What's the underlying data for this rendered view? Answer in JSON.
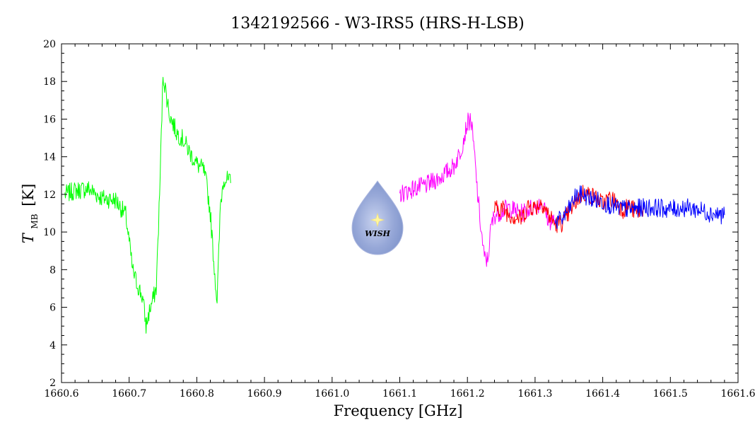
{
  "chart_data": {
    "type": "line",
    "title": "1342192566 - W3-IRS5 (HRS-H-LSB)",
    "xlabel": "Frequency [GHz]",
    "ylabel_main": "T",
    "ylabel_sub": "MB",
    "ylabel_unit": "[K]",
    "xlim": [
      1660.6,
      1661.6
    ],
    "ylim": [
      2,
      20
    ],
    "x_ticks": [
      "1660.6",
      "1660.7",
      "1660.8",
      "1660.9",
      "1661.0",
      "1661.1",
      "1661.2",
      "1661.3",
      "1661.4",
      "1661.5",
      "1661.6"
    ],
    "y_ticks": [
      "2",
      "4",
      "6",
      "8",
      "10",
      "12",
      "14",
      "16",
      "18",
      "20"
    ],
    "grid": false,
    "logo_text": "WISH",
    "series": [
      {
        "color": "#00ff00",
        "x": [
          1660.605,
          1660.62,
          1660.64,
          1660.66,
          1660.68,
          1660.695,
          1660.7,
          1660.705,
          1660.71,
          1660.72,
          1660.725,
          1660.73,
          1660.74,
          1660.745,
          1660.75,
          1660.755,
          1660.76,
          1660.77,
          1660.78,
          1660.79,
          1660.8,
          1660.81,
          1660.815,
          1660.82,
          1660.825,
          1660.83,
          1660.835,
          1660.84,
          1660.85
        ],
        "y": [
          12.0,
          12.2,
          12.3,
          11.8,
          11.7,
          10.9,
          9.5,
          8.0,
          7.4,
          6.5,
          5.0,
          5.8,
          7.0,
          12.0,
          18.4,
          17.3,
          16.2,
          15.3,
          14.9,
          14.2,
          13.6,
          13.3,
          12.4,
          11.0,
          8.5,
          6.3,
          11.5,
          12.9,
          12.6
        ]
      },
      {
        "color": "#ff00ff",
        "x": [
          1661.1,
          1661.12,
          1661.14,
          1661.16,
          1661.18,
          1661.19,
          1661.2,
          1661.205,
          1661.21,
          1661.215,
          1661.22,
          1661.225,
          1661.23,
          1661.235,
          1661.24,
          1661.26,
          1661.28,
          1661.3,
          1661.31,
          1661.32,
          1661.33
        ],
        "y": [
          12.0,
          12.3,
          12.5,
          12.9,
          13.5,
          14.3,
          15.8,
          16.0,
          14.3,
          12.0,
          10.2,
          8.6,
          8.5,
          10.3,
          10.9,
          11.3,
          11.0,
          11.4,
          11.6,
          10.6,
          10.6
        ]
      },
      {
        "color": "#ff0000",
        "x": [
          1661.24,
          1661.25,
          1661.26,
          1661.27,
          1661.28,
          1661.29,
          1661.3,
          1661.31,
          1661.32,
          1661.33,
          1661.34,
          1661.35,
          1661.36,
          1661.37,
          1661.38,
          1661.39,
          1661.4,
          1661.41,
          1661.42,
          1661.43,
          1661.44,
          1661.45,
          1661.46
        ],
        "y": [
          11.2,
          11.3,
          11.0,
          10.8,
          10.7,
          11.4,
          11.3,
          11.6,
          10.9,
          10.4,
          10.5,
          11.0,
          11.6,
          12.1,
          12.0,
          11.8,
          11.5,
          11.8,
          11.6,
          11.2,
          11.4,
          11.0,
          11.3
        ]
      },
      {
        "color": "#0000ff",
        "x": [
          1661.33,
          1661.34,
          1661.35,
          1661.36,
          1661.37,
          1661.38,
          1661.4,
          1661.42,
          1661.44,
          1661.46,
          1661.48,
          1661.5,
          1661.52,
          1661.54,
          1661.56,
          1661.58
        ],
        "y": [
          10.5,
          10.7,
          11.2,
          11.9,
          12.0,
          11.8,
          11.6,
          11.3,
          11.2,
          11.3,
          11.3,
          11.2,
          11.3,
          11.2,
          11.0,
          10.9
        ]
      }
    ]
  }
}
